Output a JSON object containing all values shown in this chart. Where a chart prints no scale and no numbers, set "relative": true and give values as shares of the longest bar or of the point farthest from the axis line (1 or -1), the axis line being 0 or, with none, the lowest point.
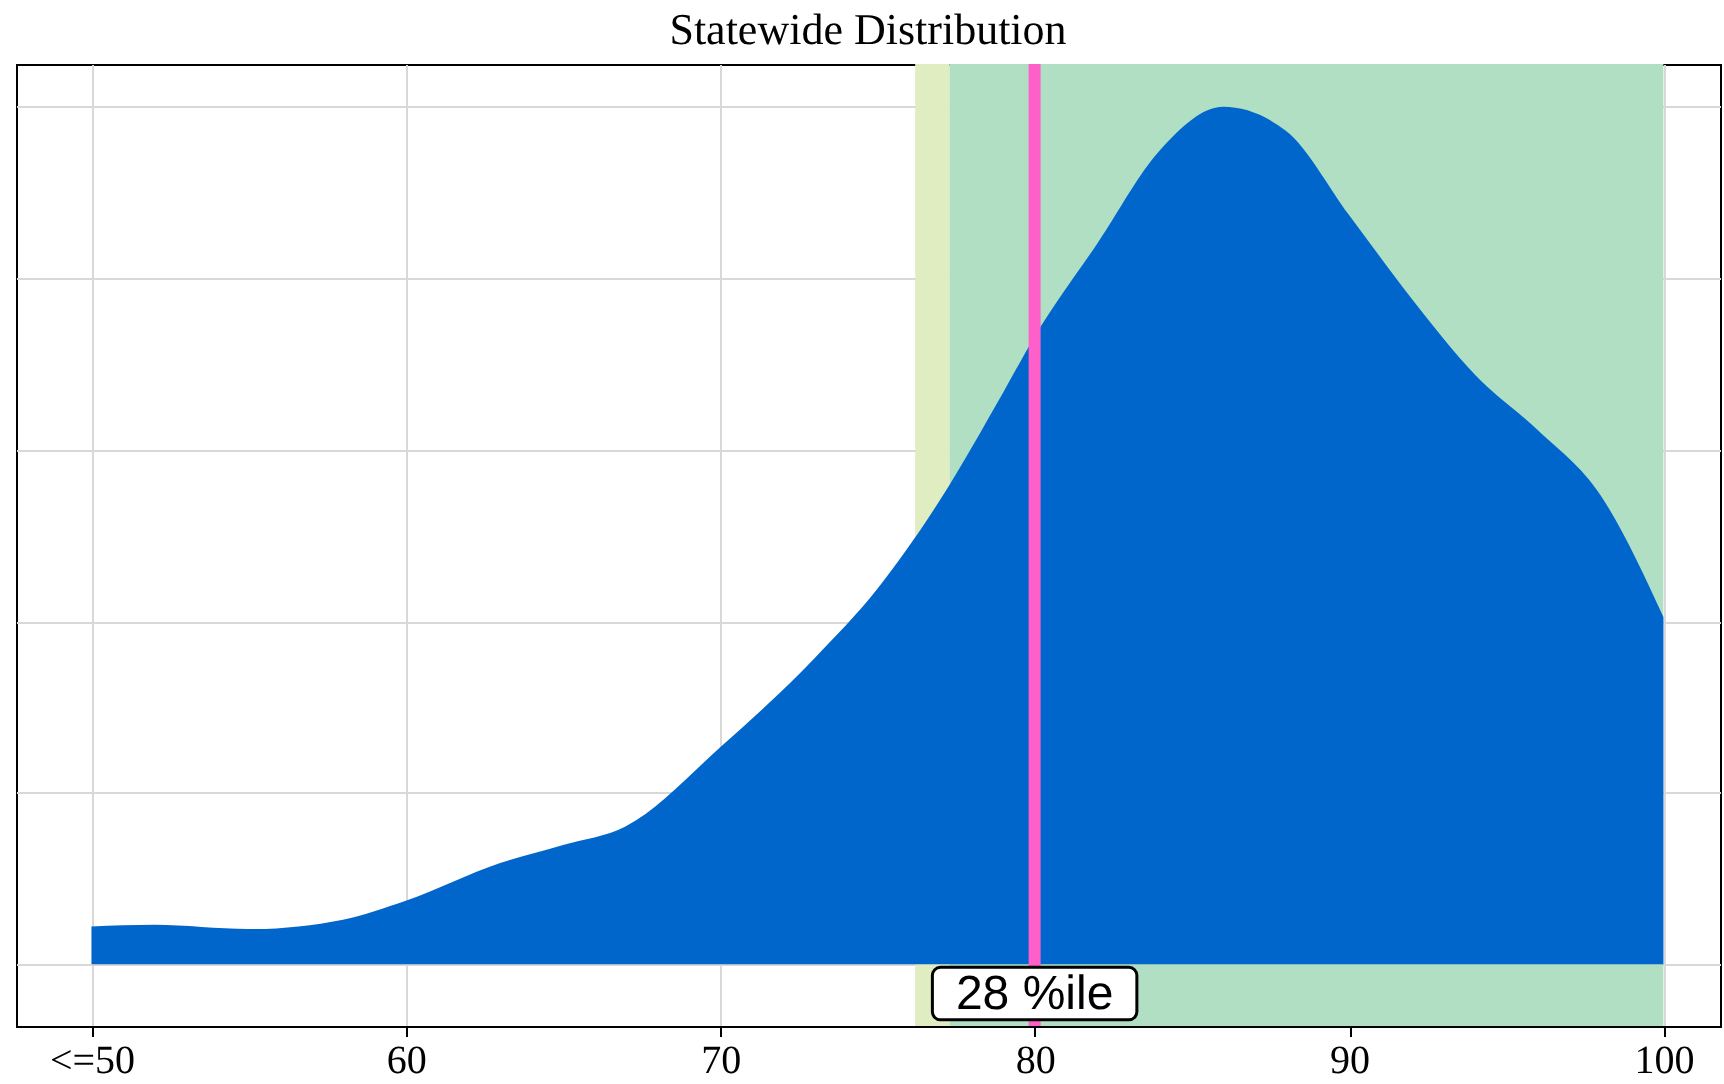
{
  "chart_data": {
    "type": "area",
    "title": "Statewide Distribution",
    "relative": true,
    "x": [
      50,
      52,
      55,
      58,
      60,
      63,
      65,
      67,
      70,
      73,
      75,
      77,
      79,
      80,
      82,
      84,
      86,
      88,
      90,
      92,
      94,
      96,
      98,
      100
    ],
    "series": [
      {
        "color": "#0066cc",
        "values": [
          0.044,
          0.046,
          0.041,
          0.052,
          0.074,
          0.118,
          0.139,
          0.161,
          0.253,
          0.357,
          0.438,
          0.542,
          0.667,
          0.732,
          0.841,
          0.95,
          1,
          0.972,
          0.874,
          0.776,
          0.688,
          0.623,
          0.547,
          0.405
        ]
      }
    ],
    "xlim": [
      47.6,
      101.8
    ],
    "xticks": [
      {
        "value": 50,
        "label": "<=50"
      },
      60,
      70,
      80,
      90,
      100
    ],
    "bands": [
      {
        "axis": "x",
        "from": 76.2,
        "to": 77.3,
        "color": "#dfedc0"
      },
      {
        "axis": "x",
        "from": 77.3,
        "to": 100,
        "color": "#b0dfc4"
      }
    ],
    "ref_lines": [
      {
        "axis": "x",
        "value": 80,
        "label": "28 %ile",
        "color": "#ff5fc8"
      }
    ],
    "grid": true
  }
}
